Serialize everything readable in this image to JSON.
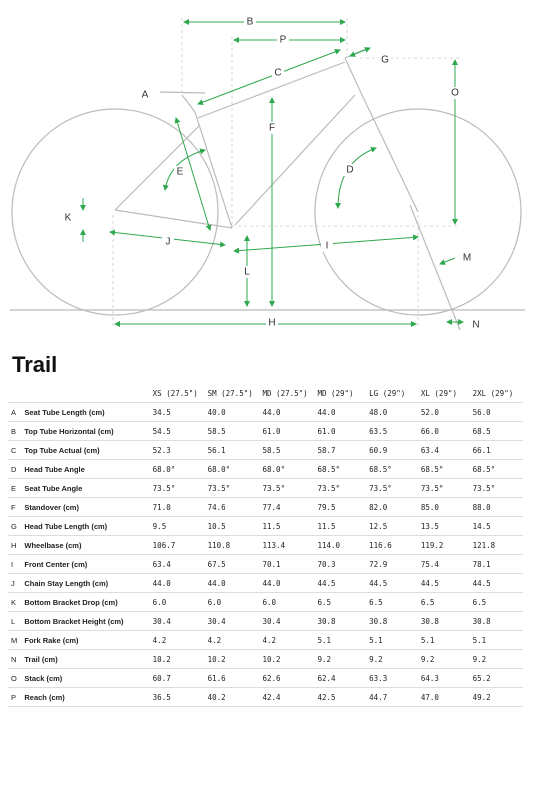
{
  "diagram": {
    "labels": [
      "B",
      "P",
      "C",
      "G",
      "O",
      "A",
      "F",
      "E",
      "D",
      "K",
      "J",
      "I",
      "M",
      "L",
      "H",
      "N"
    ]
  },
  "title": "Trail",
  "table": {
    "header": [
      "XS (27.5\")",
      "SM (27.5\")",
      "MD (27.5\")",
      "MD (29\")",
      "LG (29\")",
      "XL (29\")",
      "2XL (29\")"
    ],
    "rows": [
      [
        "A",
        "Seat Tube Length (cm)",
        "34.5",
        "40.0",
        "44.0",
        "44.0",
        "48.0",
        "52.0",
        "56.0"
      ],
      [
        "B",
        "Top Tube Horizontal (cm)",
        "54.5",
        "58.5",
        "61.0",
        "61.0",
        "63.5",
        "66.0",
        "68.5"
      ],
      [
        "C",
        "Top Tube Actual (cm)",
        "52.3",
        "56.1",
        "58.5",
        "58.7",
        "60.9",
        "63.4",
        "66.1"
      ],
      [
        "D",
        "Head Tube Angle",
        "68.0°",
        "68.0°",
        "68.0°",
        "68.5°",
        "68.5°",
        "68.5°",
        "68.5°"
      ],
      [
        "E",
        "Seat Tube Angle",
        "73.5°",
        "73.5°",
        "73.5°",
        "73.5°",
        "73.5°",
        "73.5°",
        "73.5°"
      ],
      [
        "F",
        "Standover (cm)",
        "71.0",
        "74.6",
        "77.4",
        "79.5",
        "82.0",
        "85.0",
        "88.0"
      ],
      [
        "G",
        "Head Tube Length (cm)",
        "9.5",
        "10.5",
        "11.5",
        "11.5",
        "12.5",
        "13.5",
        "14.5"
      ],
      [
        "H",
        "Wheelbase (cm)",
        "106.7",
        "110.8",
        "113.4",
        "114.0",
        "116.6",
        "119.2",
        "121.8"
      ],
      [
        "I",
        "Front Center (cm)",
        "63.4",
        "67.5",
        "70.1",
        "70.3",
        "72.9",
        "75.4",
        "78.1"
      ],
      [
        "J",
        "Chain Stay Length (cm)",
        "44.0",
        "44.0",
        "44.0",
        "44.5",
        "44.5",
        "44.5",
        "44.5"
      ],
      [
        "K",
        "Bottom Bracket Drop (cm)",
        "6.0",
        "6.0",
        "6.0",
        "6.5",
        "6.5",
        "6.5",
        "6.5"
      ],
      [
        "L",
        "Bottom Bracket Height (cm)",
        "30.4",
        "30.4",
        "30.4",
        "30.8",
        "30.8",
        "30.8",
        "30.8"
      ],
      [
        "M",
        "Fork Rake (cm)",
        "4.2",
        "4.2",
        "4.2",
        "5.1",
        "5.1",
        "5.1",
        "5.1"
      ],
      [
        "N",
        "Trail (cm)",
        "10.2",
        "10.2",
        "10.2",
        "9.2",
        "9.2",
        "9.2",
        "9.2"
      ],
      [
        "O",
        "Stack (cm)",
        "60.7",
        "61.6",
        "62.6",
        "62.4",
        "63.3",
        "64.3",
        "65.2"
      ],
      [
        "P",
        "Reach (cm)",
        "36.5",
        "40.2",
        "42.4",
        "42.5",
        "44.7",
        "47.0",
        "49.2"
      ]
    ]
  }
}
